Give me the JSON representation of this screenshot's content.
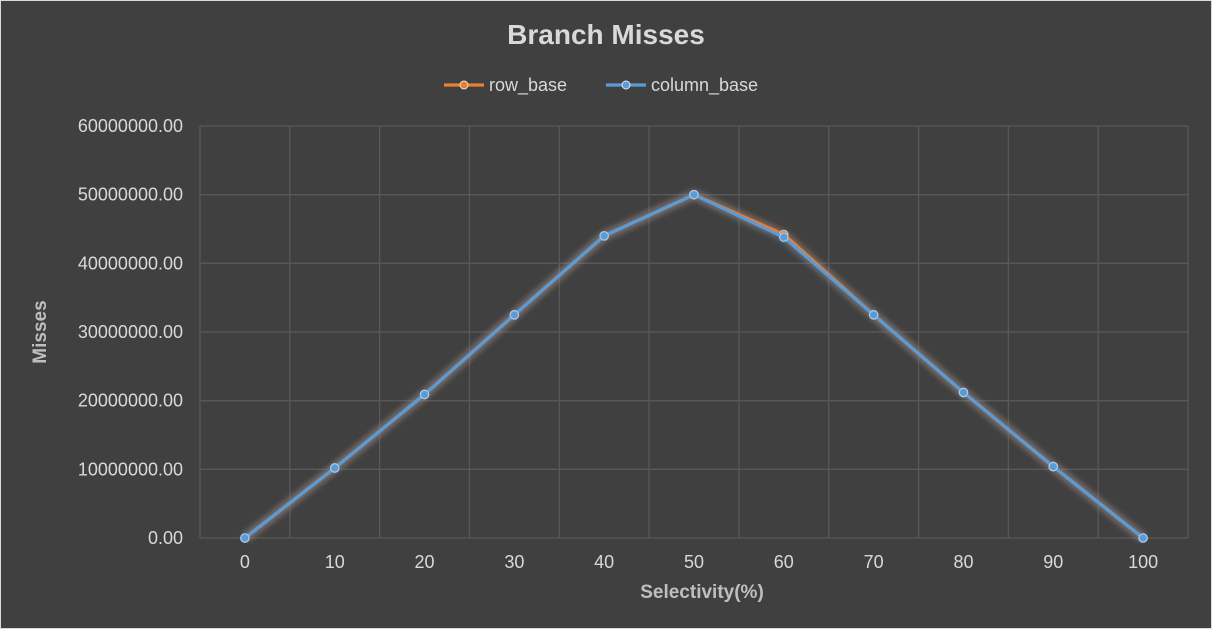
{
  "chart_data": {
    "type": "line",
    "title": "Branch Misses",
    "xlabel": "Selectivity(%)",
    "ylabel": "Misses",
    "x": [
      0,
      10,
      20,
      30,
      40,
      50,
      60,
      70,
      80,
      90,
      100
    ],
    "ylim": [
      0,
      60000000
    ],
    "yticks": [
      0,
      10000000,
      20000000,
      30000000,
      40000000,
      50000000,
      60000000
    ],
    "ytick_labels": [
      "0.00",
      "10000000.00",
      "20000000.00",
      "30000000.00",
      "40000000.00",
      "50000000.00",
      "60000000.00"
    ],
    "grid": true,
    "legend_position": "top",
    "series": [
      {
        "name": "row_base",
        "color": "#ed7d31",
        "values": [
          0,
          10200000,
          20900000,
          32500000,
          44000000,
          50000000,
          44200000,
          32500000,
          21200000,
          10400000,
          0
        ]
      },
      {
        "name": "column_base",
        "color": "#5b9bd5",
        "values": [
          0,
          10200000,
          20900000,
          32500000,
          44000000,
          50000000,
          43800000,
          32500000,
          21200000,
          10400000,
          0
        ]
      }
    ]
  },
  "colors": {
    "background": "#404040",
    "gridline": "#595959",
    "text": "#d9d9d9"
  }
}
